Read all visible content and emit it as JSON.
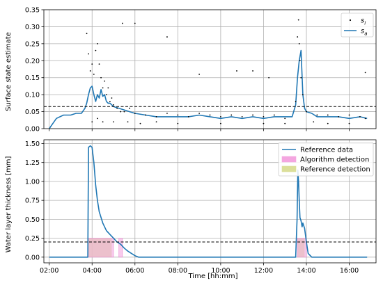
{
  "chart_data": [
    {
      "type": "line",
      "title": "",
      "xlabel": "",
      "ylabel": "Surface state estimate",
      "xlim": [
        "01:45",
        "17:15"
      ],
      "ylim": [
        0,
        0.35
      ],
      "yticks": [
        "0.00",
        "0.05",
        "0.10",
        "0.15",
        "0.20",
        "0.25",
        "0.30",
        "0.35"
      ],
      "grid": true,
      "legend": "top-right",
      "legend_entries": [
        {
          "label": "s_i",
          "base": "s",
          "sub": "i",
          "kind": "scatter",
          "color": "#000000"
        },
        {
          "label": "s_a",
          "base": "s",
          "sub": "a",
          "kind": "line",
          "color": "#1f77b4"
        }
      ],
      "threshold": {
        "y": 0.065,
        "style": "dashed",
        "color": "#000000"
      },
      "series": [
        {
          "name": "s_a",
          "kind": "line",
          "color": "#1f77b4",
          "x": [
            "02:00",
            "02:10",
            "02:20",
            "02:40",
            "03:00",
            "03:15",
            "03:30",
            "03:40",
            "03:45",
            "03:50",
            "03:55",
            "04:00",
            "04:05",
            "04:10",
            "04:15",
            "04:20",
            "04:25",
            "04:30",
            "04:35",
            "04:40",
            "04:45",
            "04:50",
            "05:00",
            "05:15",
            "05:30",
            "05:45",
            "06:00",
            "06:30",
            "07:00",
            "07:30",
            "08:00",
            "08:30",
            "09:00",
            "09:30",
            "10:00",
            "10:30",
            "11:00",
            "11:30",
            "12:00",
            "12:30",
            "13:00",
            "13:20",
            "13:30",
            "13:35",
            "13:40",
            "13:45",
            "13:50",
            "13:55",
            "14:00",
            "14:15",
            "14:30",
            "15:00",
            "15:30",
            "16:00",
            "16:30",
            "16:50"
          ],
          "y": [
            0.0,
            0.015,
            0.03,
            0.04,
            0.04,
            0.045,
            0.045,
            0.06,
            0.075,
            0.1,
            0.12,
            0.125,
            0.1,
            0.08,
            0.1,
            0.09,
            0.115,
            0.095,
            0.1,
            0.08,
            0.075,
            0.075,
            0.065,
            0.06,
            0.055,
            0.05,
            0.045,
            0.04,
            0.035,
            0.035,
            0.035,
            0.035,
            0.04,
            0.035,
            0.03,
            0.035,
            0.03,
            0.035,
            0.03,
            0.035,
            0.035,
            0.035,
            0.07,
            0.15,
            0.2,
            0.23,
            0.1,
            0.06,
            0.05,
            0.045,
            0.035,
            0.035,
            0.035,
            0.03,
            0.035,
            0.03
          ]
        },
        {
          "name": "s_i",
          "kind": "scatter",
          "color": "#000000",
          "x": [
            "03:45",
            "03:50",
            "03:55",
            "04:00",
            "04:05",
            "04:10",
            "04:15",
            "04:20",
            "04:25",
            "04:30",
            "04:35",
            "04:40",
            "04:45",
            "04:50",
            "04:55",
            "05:00",
            "05:10",
            "05:20",
            "05:30",
            "05:45",
            "06:00",
            "06:30",
            "07:00",
            "07:30",
            "08:00",
            "08:30",
            "09:00",
            "09:30",
            "10:00",
            "10:30",
            "11:00",
            "11:30",
            "12:00",
            "12:30",
            "13:00",
            "13:30",
            "13:35",
            "13:38",
            "13:40",
            "13:42",
            "13:45",
            "13:50",
            "14:00",
            "14:30",
            "15:00",
            "15:30",
            "16:00",
            "16:30",
            "16:45",
            "06:00",
            "05:25",
            "07:30",
            "09:00",
            "10:45",
            "11:30",
            "12:15",
            "16:45",
            "04:00",
            "04:15",
            "04:30",
            "05:00",
            "05:40",
            "06:15",
            "07:00",
            "08:00",
            "10:00",
            "12:00",
            "13:00",
            "14:20",
            "15:00",
            "16:00"
          ],
          "y": [
            0.28,
            0.22,
            0.17,
            0.19,
            0.16,
            0.23,
            0.25,
            0.19,
            0.15,
            0.12,
            0.14,
            0.1,
            0.12,
            0.08,
            0.09,
            0.07,
            0.06,
            0.05,
            0.05,
            0.06,
            0.045,
            0.04,
            0.035,
            0.045,
            0.04,
            0.035,
            0.045,
            0.04,
            0.035,
            0.04,
            0.035,
            0.04,
            0.035,
            0.04,
            0.03,
            0.08,
            0.27,
            0.32,
            0.25,
            0.2,
            0.15,
            0.1,
            0.05,
            0.04,
            0.04,
            0.035,
            0.04,
            0.035,
            0.03,
            0.31,
            0.31,
            0.27,
            0.16,
            0.17,
            0.17,
            0.15,
            0.165,
            0.02,
            0.03,
            0.02,
            0.02,
            0.02,
            0.015,
            0.02,
            0.015,
            0.015,
            0.015,
            0.015,
            0.02,
            0.015,
            0.015
          ]
        }
      ]
    },
    {
      "type": "line",
      "title": "",
      "xlabel": "Time [hh:mm]",
      "ylabel": "Water layer thickness [mm]",
      "xlim": [
        "01:45",
        "17:15"
      ],
      "ylim": [
        -0.075,
        1.55
      ],
      "xticks": [
        "02:00",
        "04:00",
        "06:00",
        "08:00",
        "10:00",
        "12:00",
        "14:00",
        "16:00"
      ],
      "yticks": [
        "0.00",
        "0.25",
        "0.50",
        "0.75",
        "1.00",
        "1.25",
        "1.50"
      ],
      "grid": true,
      "legend": "top-right",
      "legend_entries": [
        {
          "label": "Reference data",
          "kind": "line",
          "color": "#1f77b4"
        },
        {
          "label": "Algorithm detection",
          "kind": "patch",
          "color": "#f4a6e0"
        },
        {
          "label": "Reference detection",
          "kind": "patch",
          "color": "#dbdf9a"
        }
      ],
      "threshold": {
        "y": 0.2,
        "style": "dashed",
        "color": "#000000"
      },
      "series": [
        {
          "name": "Reference data",
          "kind": "line",
          "color": "#1f77b4",
          "x": [
            "02:00",
            "03:00",
            "03:40",
            "03:48",
            "03:50",
            "03:55",
            "04:00",
            "04:05",
            "04:10",
            "04:15",
            "04:20",
            "04:30",
            "04:40",
            "04:50",
            "05:00",
            "05:10",
            "05:20",
            "05:30",
            "05:40",
            "05:50",
            "06:00",
            "06:10",
            "07:00",
            "08:00",
            "09:00",
            "10:00",
            "11:00",
            "12:00",
            "13:00",
            "13:30",
            "13:34",
            "13:36",
            "13:38",
            "13:40",
            "13:42",
            "13:45",
            "13:48",
            "13:50",
            "13:55",
            "14:00",
            "14:05",
            "14:15",
            "15:00",
            "16:00",
            "16:50"
          ],
          "y": [
            0.0,
            0.0,
            0.0,
            0.0,
            1.45,
            1.47,
            1.45,
            1.25,
            0.95,
            0.75,
            0.6,
            0.45,
            0.35,
            0.3,
            0.25,
            0.2,
            0.17,
            0.12,
            0.08,
            0.05,
            0.02,
            0.0,
            0.0,
            0.0,
            0.0,
            0.0,
            0.0,
            0.0,
            0.0,
            0.0,
            0.5,
            1.15,
            1.0,
            0.75,
            0.52,
            0.48,
            0.4,
            0.45,
            0.38,
            0.2,
            0.05,
            0.0,
            0.0,
            0.0,
            0.0
          ]
        }
      ],
      "detections": {
        "algorithm": [
          [
            "03:49",
            "05:00"
          ],
          [
            "05:15",
            "05:25"
          ],
          [
            "13:35",
            "14:00"
          ]
        ],
        "reference": [
          [
            "03:49",
            "04:55"
          ],
          [
            "13:35",
            "13:55"
          ]
        ],
        "height": 0.25
      }
    }
  ]
}
